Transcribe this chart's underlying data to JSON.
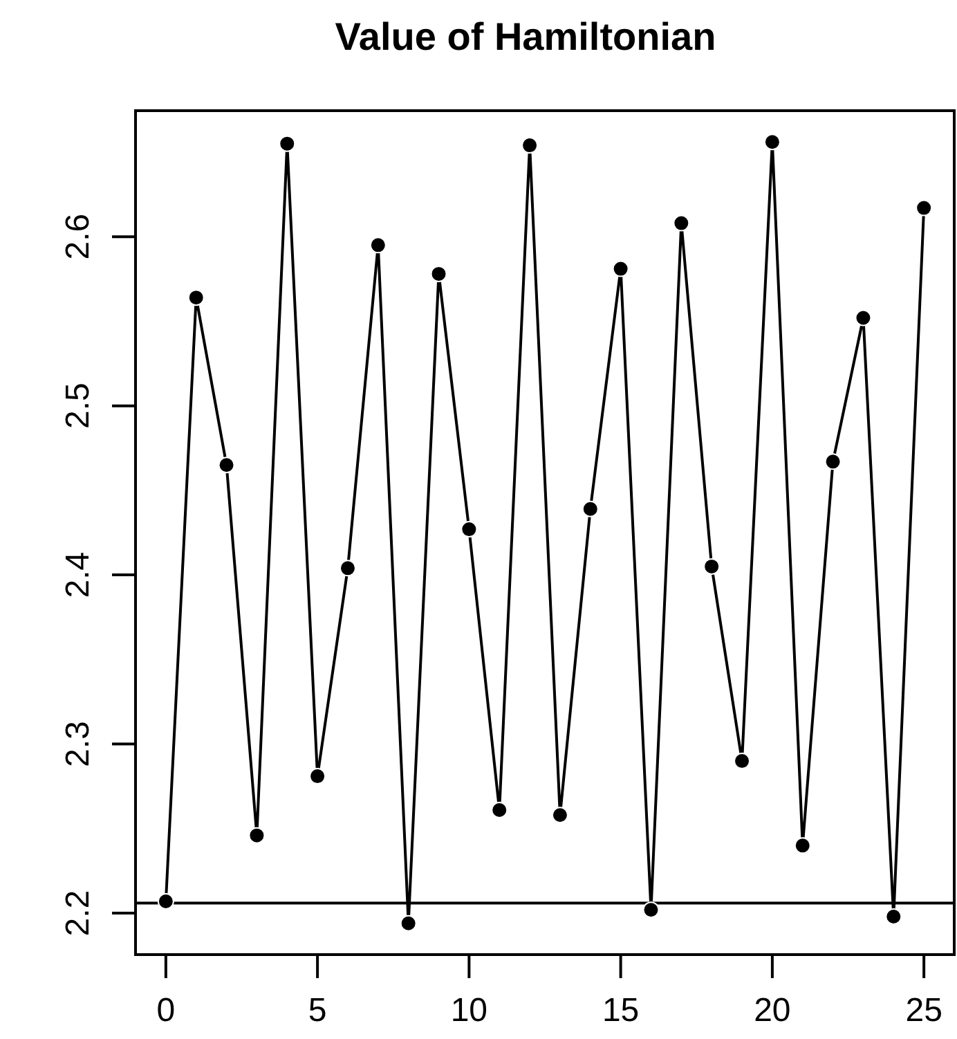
{
  "chart_data": {
    "type": "line",
    "title": "Value of Hamiltonian",
    "x": [
      0,
      1,
      2,
      3,
      4,
      5,
      6,
      7,
      8,
      9,
      10,
      11,
      12,
      13,
      14,
      15,
      16,
      17,
      18,
      19,
      20,
      21,
      22,
      23,
      24,
      25
    ],
    "series": [
      {
        "color": "#000000",
        "values": [
          2.207,
          2.564,
          2.465,
          2.246,
          2.655,
          2.281,
          2.404,
          2.595,
          2.194,
          2.578,
          2.427,
          2.261,
          2.654,
          2.258,
          2.439,
          2.581,
          2.202,
          2.608,
          2.405,
          2.29,
          2.656,
          2.24,
          2.467,
          2.552,
          2.198,
          2.617
        ]
      }
    ],
    "xlim": [
      -1,
      26
    ],
    "xticks": [
      0,
      5,
      10,
      15,
      20,
      25
    ],
    "ylim": [
      2.1755,
      2.6745
    ],
    "yticks": [
      2.2,
      2.3,
      2.4,
      2.5,
      2.6
    ],
    "marker": "circle",
    "line_style": "solid",
    "ref_lines": [
      {
        "axis": "y",
        "value": 2.206,
        "color": "#000000"
      }
    ]
  }
}
